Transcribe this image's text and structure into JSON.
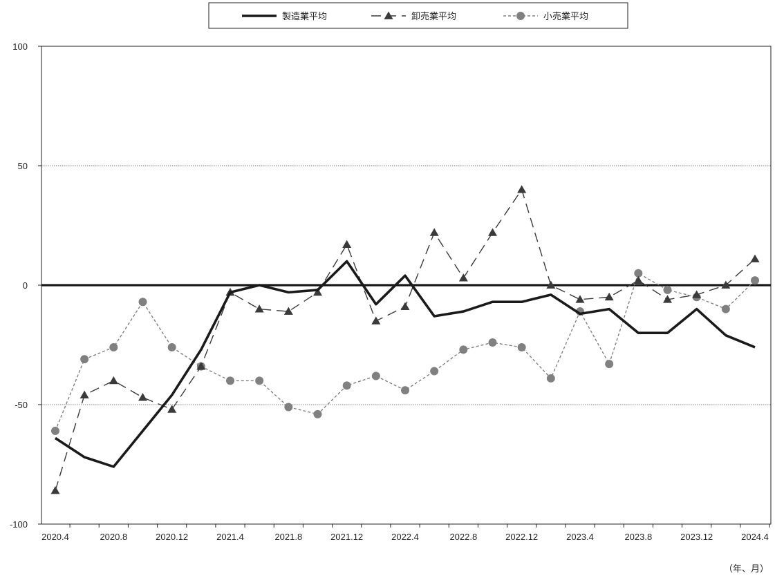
{
  "chart_data": {
    "type": "line",
    "title": "",
    "xlabel": "",
    "ylabel": "",
    "unit_label": "（年、月）",
    "ylim": [
      -100,
      100
    ],
    "yticks": [
      100,
      50,
      0,
      -50,
      -100
    ],
    "y_tick_labels": [
      "100",
      "50",
      "0",
      "-50",
      "-100"
    ],
    "gridlines": [
      50,
      -50
    ],
    "zero_line": 0,
    "legend_position": "top-center",
    "x": [
      "2020.4",
      "2020.6",
      "2020.8",
      "2020.10",
      "2020.12",
      "2021.2",
      "2021.4",
      "2021.6",
      "2021.8",
      "2021.10",
      "2021.12",
      "2022.2",
      "2022.4",
      "2022.6",
      "2022.8",
      "2022.10",
      "2022.12",
      "2023.2",
      "2023.4",
      "2023.6",
      "2023.8",
      "2023.10",
      "2023.12",
      "2024.2",
      "2024.4"
    ],
    "x_tick_labels": [
      "2020.4",
      "2020.8",
      "2020.12",
      "2021.4",
      "2021.8",
      "2021.12",
      "2022.4",
      "2022.8",
      "2022.12",
      "2023.4",
      "2023.8",
      "2023.12",
      "2024.4"
    ],
    "series": [
      {
        "name": "製造業平均",
        "style": "solid-thick",
        "color": "#1a1a1a",
        "values": [
          -64,
          -72,
          -76,
          -61,
          -46,
          -27,
          -3,
          0,
          -3,
          -2,
          10,
          -8,
          4,
          -13,
          -11,
          -7,
          -7,
          -4,
          -12,
          -10,
          -20,
          -20,
          -10,
          -21,
          -26
        ]
      },
      {
        "name": "卸売業平均",
        "style": "dashed-triangle",
        "color": "#3a3a3a",
        "values": [
          -86,
          -46,
          -40,
          -47,
          -52,
          -34,
          -3,
          -10,
          -11,
          -3,
          17,
          -15,
          -9,
          22,
          3,
          22,
          40,
          0,
          -6,
          -5,
          2,
          -6,
          -4,
          0,
          11
        ]
      },
      {
        "name": "小売業平均",
        "style": "dotted-circle",
        "color": "#808080",
        "values": [
          -61,
          -31,
          -26,
          -7,
          -26,
          -34,
          -40,
          -40,
          -51,
          -54,
          -42,
          -38,
          -44,
          -36,
          -27,
          -24,
          -26,
          -39,
          -11,
          -33,
          5,
          -2,
          -5,
          -10,
          2
        ]
      }
    ]
  }
}
